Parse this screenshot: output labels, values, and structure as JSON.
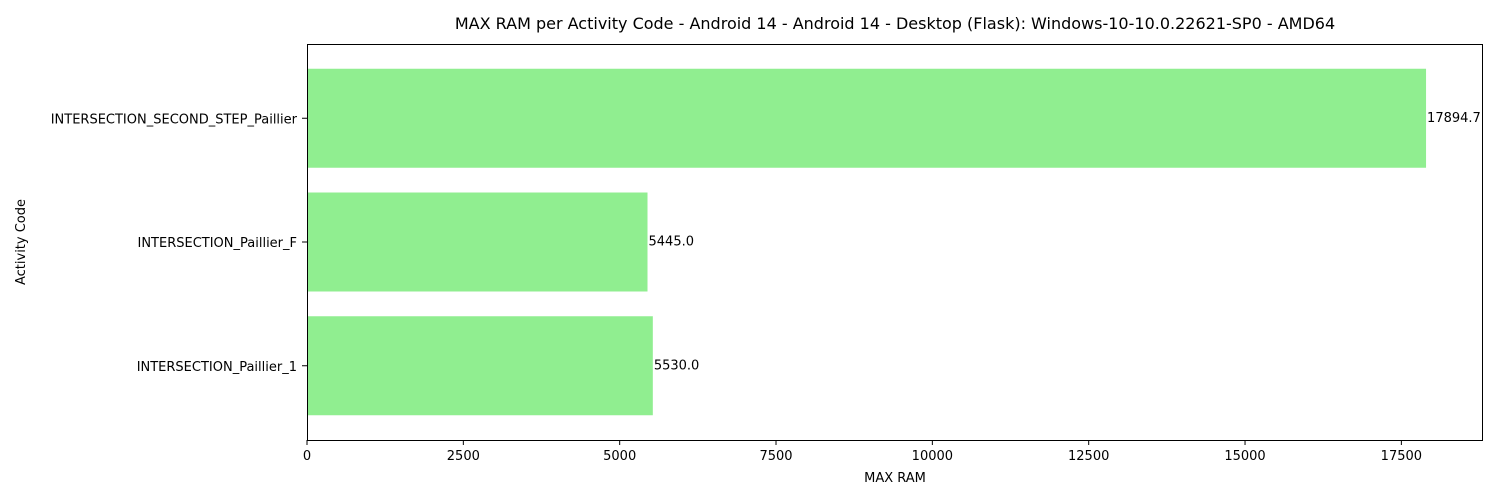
{
  "chart_data": {
    "type": "bar",
    "orientation": "horizontal",
    "title": "MAX RAM per Activity Code - Android 14 - Android 14 - Desktop (Flask): Windows-10-10.0.22621-SP0 - AMD64",
    "xlabel": "MAX RAM",
    "ylabel": "Activity Code",
    "categories": [
      "INTERSECTION_SECOND_STEP_Paillier",
      "INTERSECTION_Paillier_F",
      "INTERSECTION_Paillier_1"
    ],
    "values": [
      17894.7,
      5445.0,
      5530.0
    ],
    "value_labels": [
      "17894.7",
      "5445.0",
      "5530.0"
    ],
    "xlim": [
      0,
      18789.4
    ],
    "xticks": [
      0,
      2500,
      5000,
      7500,
      10000,
      12500,
      15000,
      17500
    ],
    "xtick_labels": [
      "0",
      "2500",
      "5000",
      "7500",
      "10000",
      "12500",
      "15000",
      "17500"
    ],
    "bar_color": "#90ee90",
    "grid": false,
    "legend": "none"
  }
}
